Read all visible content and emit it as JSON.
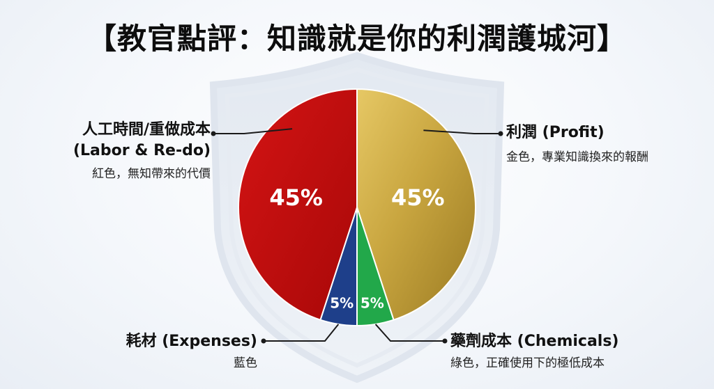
{
  "title": "【教官點評：知識就是你的利潤護城河】",
  "chart_data": {
    "type": "pie",
    "slices": [
      {
        "key": "profit",
        "label": "利潤 (Profit)",
        "note": "金色，專業知識換來的報酬",
        "value": 45,
        "value_label": "45%",
        "color": "#c9a640"
      },
      {
        "key": "chemicals",
        "label": "藥劑成本 (Chemicals)",
        "note": "綠色，正確使用下的極低成本",
        "value": 5,
        "value_label": "5%",
        "color": "#22a84a"
      },
      {
        "key": "expenses",
        "label": "耗材 (Expenses)",
        "note": "藍色",
        "value": 5,
        "value_label": "5%",
        "color": "#1e3f8a"
      },
      {
        "key": "labor",
        "label_line1": "人工時間/重做成本",
        "label_line2": "(Labor & Re-do)",
        "note": "紅色，無知帶來的代價",
        "value": 45,
        "value_label": "45%",
        "color": "#c20d0d"
      }
    ]
  }
}
